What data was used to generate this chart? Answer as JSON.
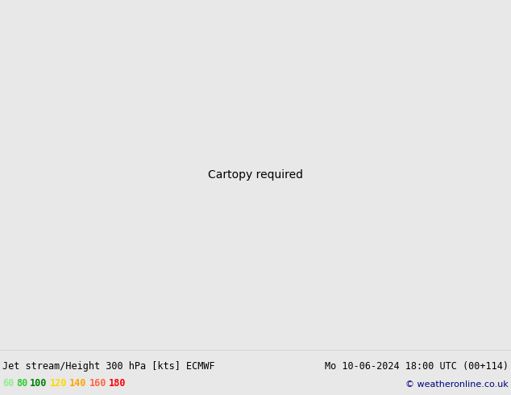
{
  "title_left": "Jet stream/Height 300 hPa [kts] ECMWF",
  "title_right": "Mo 10-06-2024 18:00 UTC (00+114)",
  "copyright": "© weatheronline.co.uk",
  "legend_values": [
    "60",
    "80",
    "100",
    "120",
    "140",
    "160",
    "180"
  ],
  "legend_colors": [
    "#90ee90",
    "#32cd32",
    "#008000",
    "#ffd700",
    "#ffa500",
    "#ff6347",
    "#ff0000"
  ],
  "bg_color": "#e8e8e8",
  "ocean_color": "#e8e8e8",
  "land_color": "#d4ecc4",
  "coast_color": "#a0a0a0",
  "border_color": "#a0a0a0",
  "contour_color": "#000000",
  "figsize": [
    6.34,
    4.9
  ],
  "dpi": 100,
  "extent": [
    -175,
    -40,
    20,
    80
  ],
  "contour_levels": [
    880,
    912,
    944,
    976
  ],
  "jet_levels": [
    60,
    80,
    100,
    120,
    140,
    160,
    180
  ],
  "jet_fill_colors": [
    "#c8f0c8",
    "#90ee90",
    "#32cd32",
    "#ffd700",
    "#ffa500",
    "#ff6347",
    "#ff0000"
  ]
}
